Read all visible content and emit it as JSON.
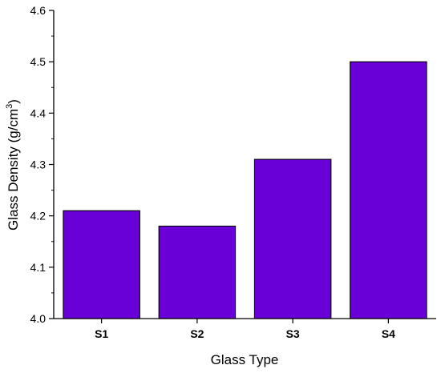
{
  "chart_data": {
    "type": "bar",
    "categories": [
      "S1",
      "S2",
      "S3",
      "S4"
    ],
    "values": [
      4.21,
      4.18,
      4.31,
      4.5
    ],
    "title": "",
    "xlabel": "Glass Type",
    "ylabel_main": "Glass Density (g/cm",
    "ylabel_sup": "3",
    "ylabel_end": ")",
    "ylim": [
      4.0,
      4.6
    ],
    "yticks": [
      "4.0",
      "4.1",
      "4.2",
      "4.3",
      "4.4",
      "4.5",
      "4.6"
    ],
    "bar_color": "#6a00d8",
    "grid": false,
    "legend": "none"
  }
}
